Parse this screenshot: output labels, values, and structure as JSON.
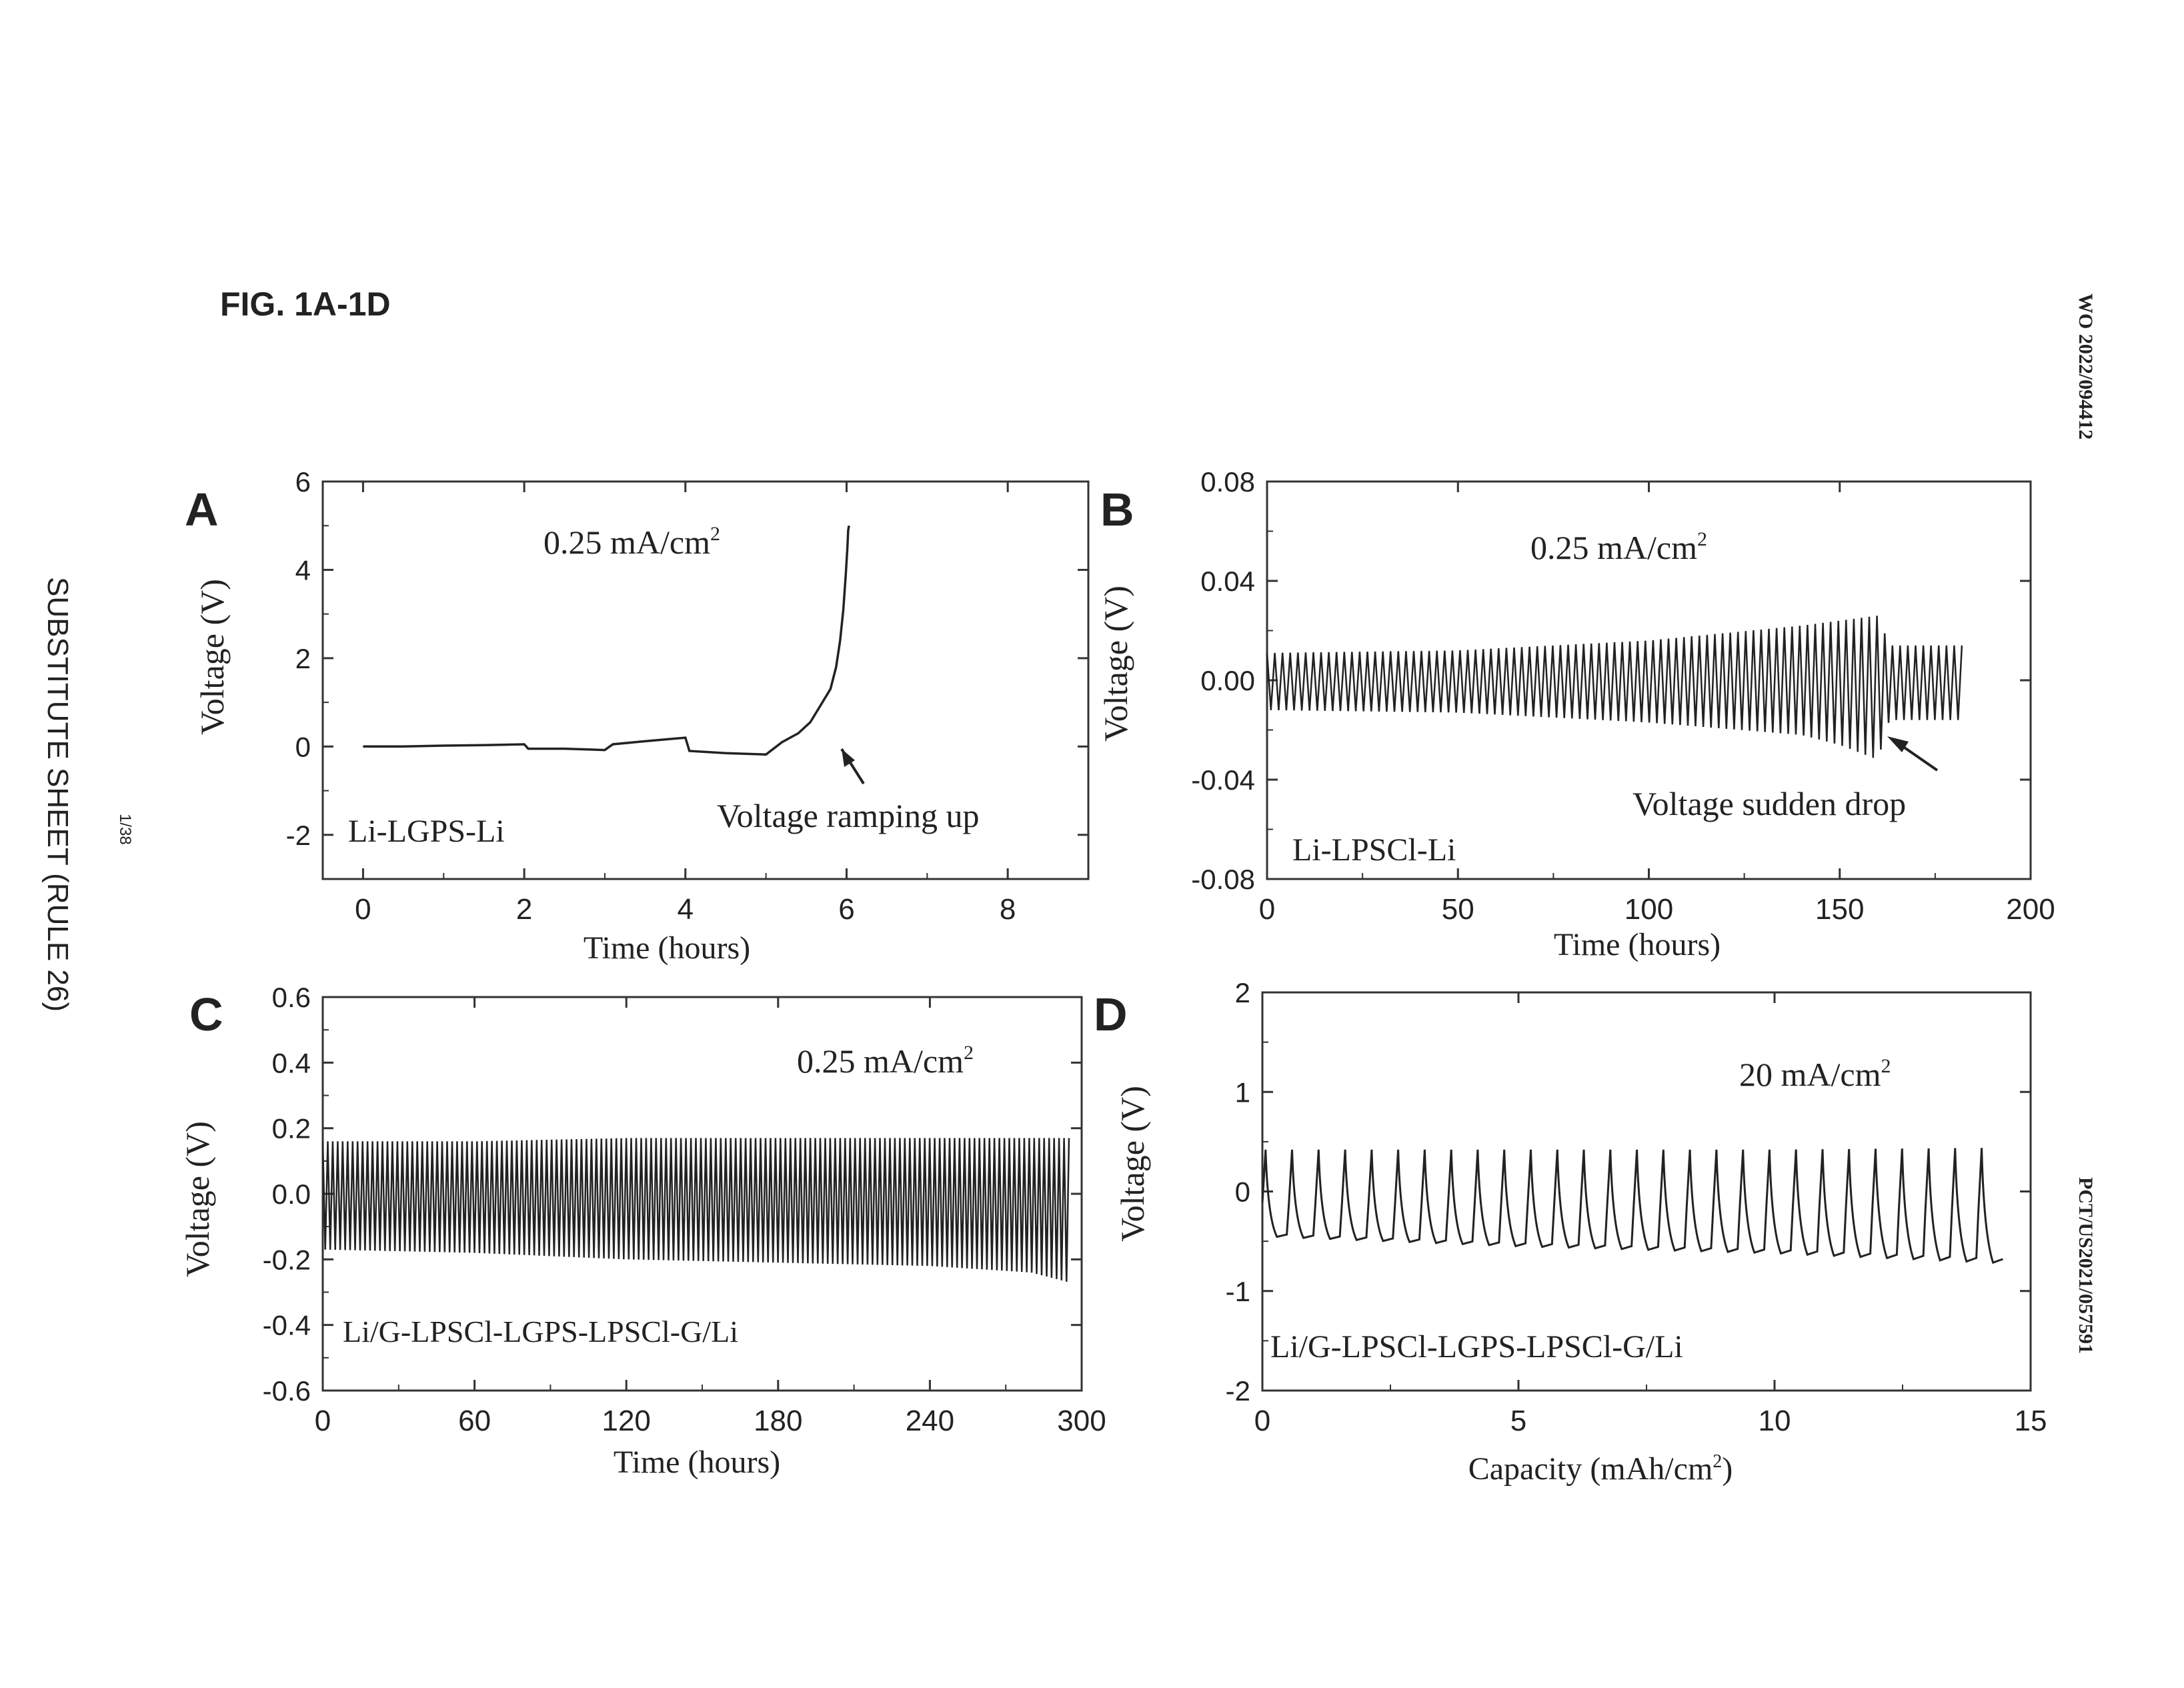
{
  "page": {
    "figure_title": "FIG. 1A-1D",
    "left_margin_text": "SUBSTITUTE SHEET (RULE 26)",
    "page_number": "1/38",
    "right_top_text": "WO 2022/094412",
    "right_bottom_text": "PCT/US2021/057591"
  },
  "chart_data": [
    {
      "panel": "A",
      "type": "line",
      "title": "",
      "xlabel": "Time (hours)",
      "ylabel": "Voltage (V)",
      "xlim": [
        -0.5,
        9.0
      ],
      "ylim": [
        -3,
        6
      ],
      "xticks": [
        "0",
        "2",
        "4",
        "6",
        "8"
      ],
      "yticks": [
        "-2",
        "0",
        "2",
        "4",
        "6"
      ],
      "current_density": "0.25 mA/cm",
      "current_density_sup": "2",
      "cell_label": "Li-LGPS-Li",
      "annotation": "Voltage ramping up",
      "series": [
        {
          "style": "curve",
          "x": [
            0,
            0.5,
            1,
            1.5,
            2,
            2.05,
            2.5,
            3,
            3.1,
            3.5,
            4,
            4.05,
            4.5,
            5,
            5.2,
            5.4,
            5.55,
            5.7,
            5.8,
            5.87,
            5.92,
            5.96,
            5.99,
            6.01,
            6.02,
            6.03
          ],
          "y": [
            0,
            0,
            0.02,
            0.03,
            0.05,
            -0.05,
            -0.05,
            -0.08,
            0.05,
            0.12,
            0.2,
            -0.1,
            -0.15,
            -0.18,
            0.1,
            0.3,
            0.55,
            1.0,
            1.3,
            1.8,
            2.4,
            3.1,
            3.9,
            4.5,
            4.9,
            5.0
          ]
        }
      ]
    },
    {
      "panel": "B",
      "type": "line",
      "title": "",
      "xlabel": "Time (hours)",
      "ylabel": "Voltage (V)",
      "xlim": [
        0,
        200
      ],
      "ylim": [
        -0.08,
        0.08
      ],
      "xticks": [
        "0",
        "50",
        "100",
        "150",
        "200"
      ],
      "yticks": [
        "-0.08",
        "-0.04",
        "0.00",
        "0.04",
        "0.08"
      ],
      "current_density": "0.25 mA/cm",
      "current_density_sup": "2",
      "cell_label": "Li-LPSCl-Li",
      "annotation": "Voltage sudden drop",
      "series": [
        {
          "style": "oscillation",
          "x_start": 0,
          "x_end": 182,
          "cycles": 90,
          "envelope_x": [
            0,
            50,
            100,
            140,
            150,
            160,
            163,
            182
          ],
          "envelope_upper": [
            0.011,
            0.012,
            0.016,
            0.022,
            0.024,
            0.026,
            0.014,
            0.014
          ],
          "envelope_lower": [
            -0.012,
            -0.013,
            -0.017,
            -0.022,
            -0.026,
            -0.032,
            -0.016,
            -0.016
          ]
        }
      ]
    },
    {
      "panel": "C",
      "type": "line",
      "title": "",
      "xlabel": "Time (hours)",
      "ylabel": "Voltage (V)",
      "xlim": [
        0,
        300
      ],
      "ylim": [
        -0.6,
        0.6
      ],
      "xticks": [
        "0",
        "60",
        "120",
        "180",
        "240",
        "300"
      ],
      "yticks": [
        "-0.6",
        "-0.4",
        "-0.2",
        "0.0",
        "0.2",
        "0.4",
        "0.6"
      ],
      "current_density": "0.25 mA/cm",
      "current_density_sup": "2",
      "cell_label": "Li/G-LPSCl-LGPS-LPSCl-G/Li",
      "annotation": "",
      "series": [
        {
          "style": "oscillation",
          "x_start": 0,
          "x_end": 295,
          "cycles": 150,
          "envelope_x": [
            0,
            60,
            120,
            180,
            240,
            280,
            295
          ],
          "envelope_upper": [
            0.16,
            0.16,
            0.17,
            0.17,
            0.17,
            0.17,
            0.17
          ],
          "envelope_lower": [
            -0.17,
            -0.18,
            -0.2,
            -0.21,
            -0.22,
            -0.24,
            -0.27
          ]
        }
      ]
    },
    {
      "panel": "D",
      "type": "line",
      "title": "",
      "xlabel": "Capacity (mAh/cm",
      "xlabel_sup": "2",
      "xlabel_end": ")",
      "ylabel": "Voltage (V)",
      "xlim": [
        0,
        15
      ],
      "ylim": [
        -2,
        2
      ],
      "xticks": [
        "0",
        "5",
        "10",
        "15"
      ],
      "yticks": [
        "-2",
        "-1",
        "0",
        "1",
        "2"
      ],
      "current_density": "20 mA/cm",
      "current_density_sup": "2",
      "cell_label": "Li/G-LPSCl-LGPS-LPSCl-G/Li",
      "annotation": "",
      "series": [
        {
          "style": "sawtooth",
          "x_start": 0,
          "x_end": 14.5,
          "cycles": 28,
          "envelope_x": [
            0,
            5,
            10,
            14.5
          ],
          "envelope_upper": [
            0.42,
            0.42,
            0.42,
            0.44
          ],
          "envelope_lower": [
            -0.45,
            -0.55,
            -0.62,
            -0.72
          ]
        }
      ]
    }
  ]
}
